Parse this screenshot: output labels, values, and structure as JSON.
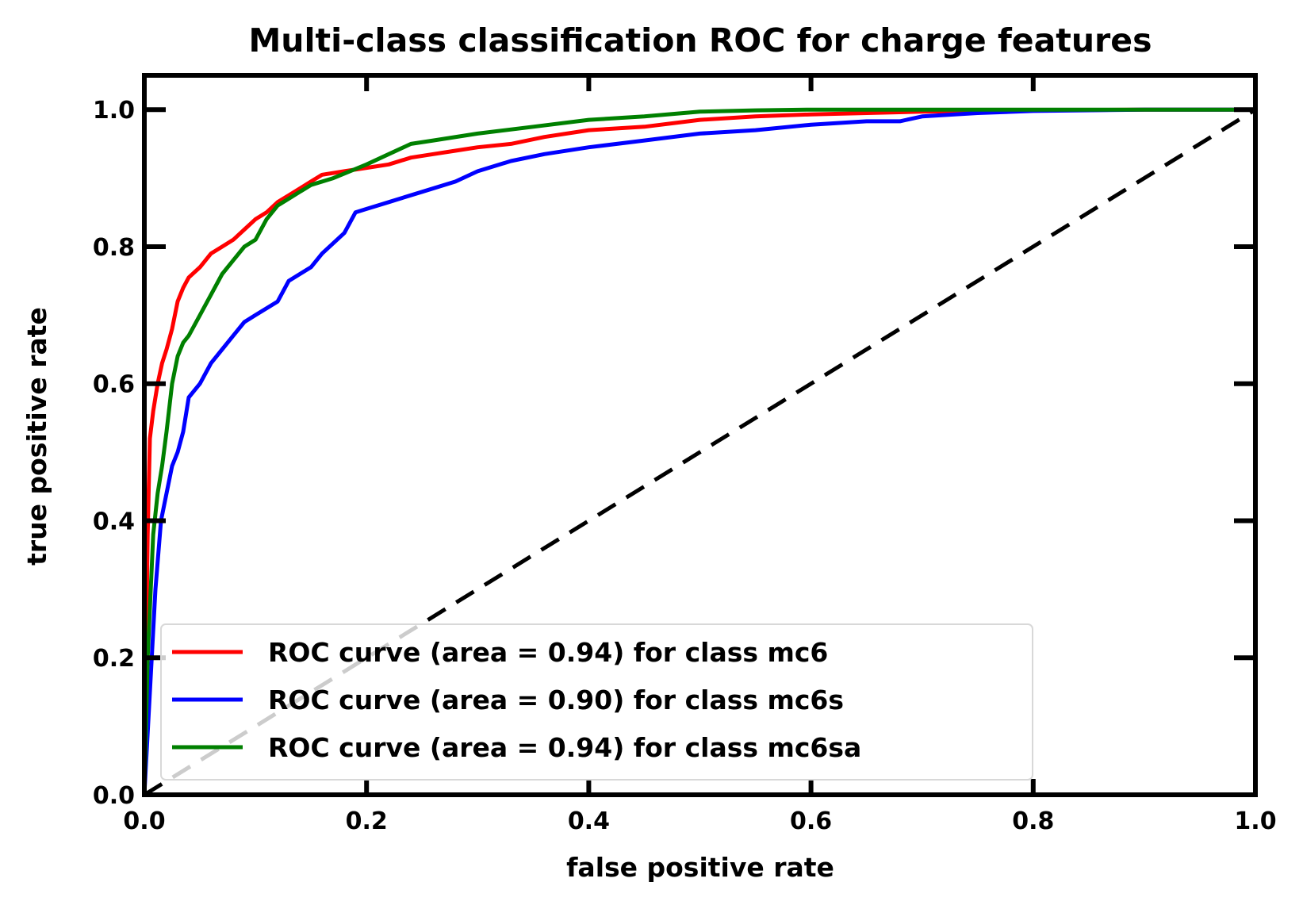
{
  "chart_data": {
    "type": "line",
    "title": "Multi-class classification ROC for charge features",
    "xlabel": "false positive rate",
    "ylabel": "true positive rate",
    "xlim": [
      0.0,
      1.0
    ],
    "ylim": [
      0.0,
      1.05
    ],
    "xticks": [
      "0.0",
      "0.2",
      "0.4",
      "0.6",
      "0.8",
      "1.0"
    ],
    "yticks": [
      "0.0",
      "0.2",
      "0.4",
      "0.6",
      "0.8",
      "1.0"
    ],
    "grid": false,
    "legend_position": "lower-center",
    "series": [
      {
        "name": "ROC curve (area = 0.94) for class mc6",
        "color": "#ff0000",
        "x": [
          0.0,
          0.003,
          0.005,
          0.008,
          0.012,
          0.016,
          0.02,
          0.025,
          0.03,
          0.035,
          0.04,
          0.05,
          0.06,
          0.07,
          0.08,
          0.09,
          0.1,
          0.11,
          0.12,
          0.13,
          0.15,
          0.16,
          0.18,
          0.2,
          0.22,
          0.24,
          0.26,
          0.28,
          0.3,
          0.33,
          0.36,
          0.4,
          0.45,
          0.5,
          0.55,
          0.6,
          0.7,
          0.8,
          0.9,
          1.0
        ],
        "y": [
          0.0,
          0.38,
          0.52,
          0.56,
          0.6,
          0.63,
          0.65,
          0.68,
          0.72,
          0.74,
          0.755,
          0.77,
          0.79,
          0.8,
          0.81,
          0.825,
          0.84,
          0.85,
          0.865,
          0.875,
          0.895,
          0.905,
          0.91,
          0.915,
          0.92,
          0.93,
          0.935,
          0.94,
          0.945,
          0.95,
          0.96,
          0.97,
          0.975,
          0.985,
          0.99,
          0.993,
          0.997,
          0.999,
          1.0,
          1.0
        ]
      },
      {
        "name": "ROC curve (area = 0.90) for class mc6s",
        "color": "#0000ff",
        "x": [
          0.0,
          0.005,
          0.01,
          0.015,
          0.02,
          0.025,
          0.03,
          0.035,
          0.04,
          0.05,
          0.06,
          0.07,
          0.08,
          0.09,
          0.1,
          0.12,
          0.13,
          0.15,
          0.16,
          0.18,
          0.19,
          0.2,
          0.22,
          0.25,
          0.28,
          0.3,
          0.33,
          0.36,
          0.4,
          0.45,
          0.5,
          0.55,
          0.6,
          0.65,
          0.68,
          0.7,
          0.75,
          0.8,
          0.9,
          1.0
        ],
        "y": [
          0.0,
          0.15,
          0.3,
          0.4,
          0.44,
          0.48,
          0.5,
          0.53,
          0.58,
          0.6,
          0.63,
          0.65,
          0.67,
          0.69,
          0.7,
          0.72,
          0.75,
          0.77,
          0.79,
          0.82,
          0.85,
          0.855,
          0.865,
          0.88,
          0.895,
          0.91,
          0.925,
          0.935,
          0.945,
          0.955,
          0.965,
          0.97,
          0.978,
          0.983,
          0.983,
          0.99,
          0.995,
          0.998,
          1.0,
          1.0
        ]
      },
      {
        "name": "ROC curve (area = 0.94) for class mc6sa",
        "color": "#008000",
        "x": [
          0.0,
          0.003,
          0.008,
          0.012,
          0.016,
          0.02,
          0.025,
          0.03,
          0.035,
          0.04,
          0.05,
          0.06,
          0.07,
          0.08,
          0.09,
          0.1,
          0.11,
          0.12,
          0.13,
          0.14,
          0.15,
          0.17,
          0.2,
          0.22,
          0.24,
          0.26,
          0.3,
          0.35,
          0.4,
          0.45,
          0.5,
          0.55,
          0.6,
          0.7,
          0.8,
          1.0
        ],
        "y": [
          0.0,
          0.2,
          0.38,
          0.44,
          0.48,
          0.53,
          0.6,
          0.64,
          0.66,
          0.67,
          0.7,
          0.73,
          0.76,
          0.78,
          0.8,
          0.81,
          0.84,
          0.86,
          0.87,
          0.88,
          0.89,
          0.9,
          0.92,
          0.935,
          0.95,
          0.955,
          0.965,
          0.975,
          0.985,
          0.99,
          0.997,
          0.999,
          1.0,
          1.0,
          1.0,
          1.0
        ]
      }
    ],
    "reference_line": {
      "x": [
        0.0,
        1.0
      ],
      "y": [
        0.0,
        1.0
      ],
      "color": "#000000",
      "style": "dashed"
    }
  }
}
